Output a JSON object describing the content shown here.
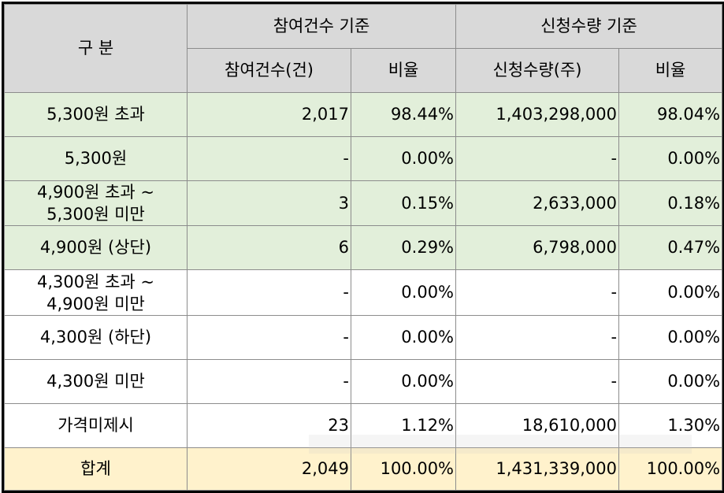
{
  "header": {
    "category": "구 분",
    "group_count": "참여건수 기준",
    "group_qty": "신청수량 기준",
    "col_count": "참여건수(건)",
    "col_count_ratio": "비율",
    "col_qty": "신청수량(주)",
    "col_qty_ratio": "비율"
  },
  "rows": [
    {
      "label": "5,300원 초과",
      "count": "2,017",
      "count_ratio": "98.44%",
      "qty": "1,403,298,000",
      "qty_ratio": "98.04%"
    },
    {
      "label": "5,300원",
      "count": "-",
      "count_ratio": "0.00%",
      "qty": "-",
      "qty_ratio": "0.00%"
    },
    {
      "label_line1": "4,900원 초과 ~",
      "label_line2": "5,300원 미만",
      "count": "3",
      "count_ratio": "0.15%",
      "qty": "2,633,000",
      "qty_ratio": "0.18%"
    },
    {
      "label": "4,900원 (상단)",
      "count": "6",
      "count_ratio": "0.29%",
      "qty": "6,798,000",
      "qty_ratio": "0.47%"
    },
    {
      "label_line1": "4,300원 초과 ~",
      "label_line2": "4,900원 미만",
      "count": "-",
      "count_ratio": "0.00%",
      "qty": "-",
      "qty_ratio": "0.00%"
    },
    {
      "label": "4,300원 (하단)",
      "count": "-",
      "count_ratio": "0.00%",
      "qty": "-",
      "qty_ratio": "0.00%"
    },
    {
      "label": "4,300원 미만",
      "count": "-",
      "count_ratio": "0.00%",
      "qty": "-",
      "qty_ratio": "0.00%"
    },
    {
      "label": "가격미제시",
      "count": "23",
      "count_ratio": "1.12%",
      "qty": "18,610,000",
      "qty_ratio": "1.30%"
    }
  ],
  "total": {
    "label": "합계",
    "count": "2,049",
    "count_ratio": "100.00%",
    "qty": "1,431,339,000",
    "qty_ratio": "100.00%"
  },
  "colors": {
    "header_bg": "#d9d9d9",
    "green_bg": "#e2efda",
    "total_bg": "#fff2cc",
    "border": "#8c8c8c"
  }
}
